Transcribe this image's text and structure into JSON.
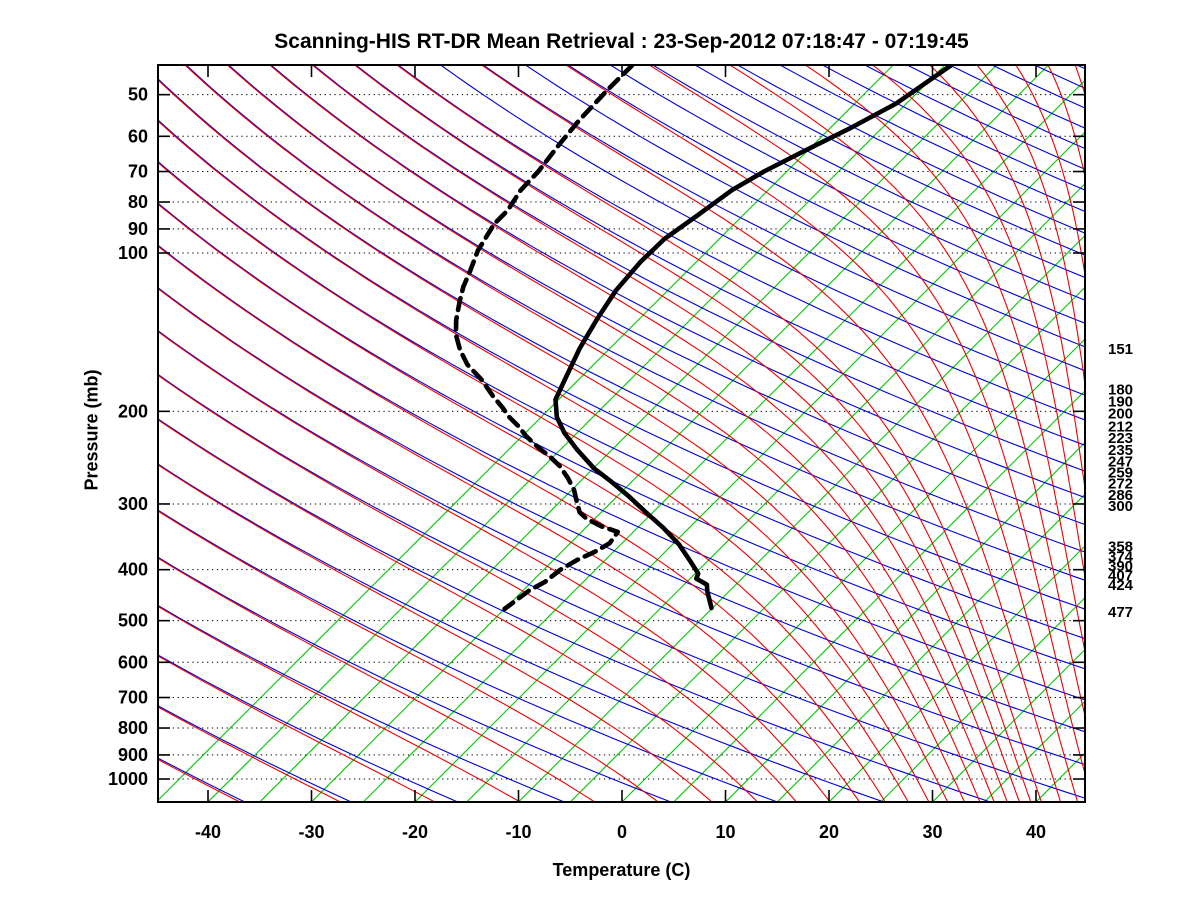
{
  "title": "Scanning-HIS RT-DR Mean Retrieval : 23-Sep-2012 07:18:47 - 07:19:45",
  "axes": {
    "x": {
      "label": "Temperature (C)",
      "ticks": [
        -40,
        -30,
        -20,
        -10,
        0,
        10,
        20,
        30,
        40
      ],
      "min": -44.8,
      "max": 44.7
    },
    "y": {
      "label": "Pressure (mb)",
      "ticks": [
        50,
        60,
        70,
        80,
        90,
        100,
        200,
        300,
        400,
        500,
        600,
        700,
        800,
        900,
        1000
      ],
      "scale": "log",
      "min": 44,
      "max": 1106
    }
  },
  "right_pressure_labels": [
    151,
    180,
    190,
    200,
    212,
    223,
    235,
    247,
    259,
    272,
    286,
    300,
    358,
    374,
    390,
    407,
    424,
    477
  ],
  "colors": {
    "isotherm": "#00c400",
    "dry_adiabat": "#0000d8",
    "moist_adiabat": "#ee0000",
    "sounding": "#000000",
    "grid_dots": "#000000",
    "border": "#000000",
    "background": "#ffffff"
  },
  "background_lines": {
    "isotherms_c": {
      "min": -45,
      "max": 45,
      "step": 5
    },
    "dry_adiabats_theta_k": {
      "min": 220,
      "max": 600,
      "step": 10
    },
    "moist_adiabats_thetae_k": {
      "ranges": [
        {
          "min": 220,
          "max": 440,
          "step": 10
        },
        {
          "min": 460,
          "max": 700,
          "step": 20
        }
      ]
    },
    "skew_deg": 45
  },
  "chart_data": {
    "type": "line",
    "diagram": "skew-t log-p sounding",
    "title": "Scanning-HIS RT-DR Mean Retrieval : 23-Sep-2012 07:18:47 - 07:19:45",
    "xlabel": "Temperature (C)",
    "ylabel": "Pressure (mb)",
    "x_range_c": [
      -44.8,
      44.7
    ],
    "p_range_mb": [
      44,
      1106
    ],
    "series": [
      {
        "name": "temperature",
        "style": "solid",
        "color": "#000000",
        "points_p_t": [
          [
            44,
            -39.4
          ],
          [
            52,
            -41.0
          ],
          [
            58,
            -43.1
          ],
          [
            64,
            -45.3
          ],
          [
            70,
            -47.2
          ],
          [
            76,
            -48.5
          ],
          [
            85,
            -49.4
          ],
          [
            94,
            -50.3
          ],
          [
            104,
            -50.4
          ],
          [
            118,
            -50.0
          ],
          [
            133,
            -49.1
          ],
          [
            152,
            -47.9
          ],
          [
            173,
            -46.4
          ],
          [
            190,
            -45.3
          ],
          [
            205,
            -43.5
          ],
          [
            220,
            -41.2
          ],
          [
            237,
            -38.3
          ],
          [
            257,
            -34.9
          ],
          [
            272,
            -32.0
          ],
          [
            290,
            -28.9
          ],
          [
            311,
            -25.7
          ],
          [
            333,
            -22.5
          ],
          [
            358,
            -19.4
          ],
          [
            384,
            -16.8
          ],
          [
            407,
            -14.7
          ],
          [
            416,
            -14.4
          ],
          [
            427,
            -12.8
          ],
          [
            440,
            -12.1
          ],
          [
            473,
            -10.1
          ]
        ]
      },
      {
        "name": "dewpoint",
        "style": "dashed",
        "color": "#000000",
        "points_p_t": [
          [
            44,
            -70.2
          ],
          [
            49,
            -70.2
          ],
          [
            56,
            -70.0
          ],
          [
            62,
            -69.6
          ],
          [
            70,
            -69.0
          ],
          [
            76,
            -68.9
          ],
          [
            83,
            -68.2
          ],
          [
            88,
            -68.2
          ],
          [
            99,
            -67.2
          ],
          [
            108,
            -66.0
          ],
          [
            116,
            -65.1
          ],
          [
            124,
            -64.0
          ],
          [
            134,
            -62.6
          ],
          [
            143,
            -61.2
          ],
          [
            153,
            -59.3
          ],
          [
            163,
            -57.2
          ],
          [
            174,
            -54.4
          ],
          [
            187,
            -51.7
          ],
          [
            197,
            -49.6
          ],
          [
            205,
            -48.1
          ],
          [
            213,
            -46.4
          ],
          [
            223,
            -44.6
          ],
          [
            234,
            -42.4
          ],
          [
            244,
            -40.3
          ],
          [
            254,
            -38.5
          ],
          [
            268,
            -36.5
          ],
          [
            282,
            -34.8
          ],
          [
            298,
            -33.3
          ],
          [
            311,
            -32.1
          ],
          [
            320,
            -30.8
          ],
          [
            331,
            -28.6
          ],
          [
            339,
            -26.5
          ],
          [
            356,
            -26.2
          ],
          [
            370,
            -26.8
          ],
          [
            383,
            -27.7
          ],
          [
            400,
            -28.4
          ],
          [
            422,
            -28.7
          ],
          [
            438,
            -29.4
          ],
          [
            462,
            -29.8
          ],
          [
            475,
            -30.0
          ]
        ]
      }
    ]
  }
}
